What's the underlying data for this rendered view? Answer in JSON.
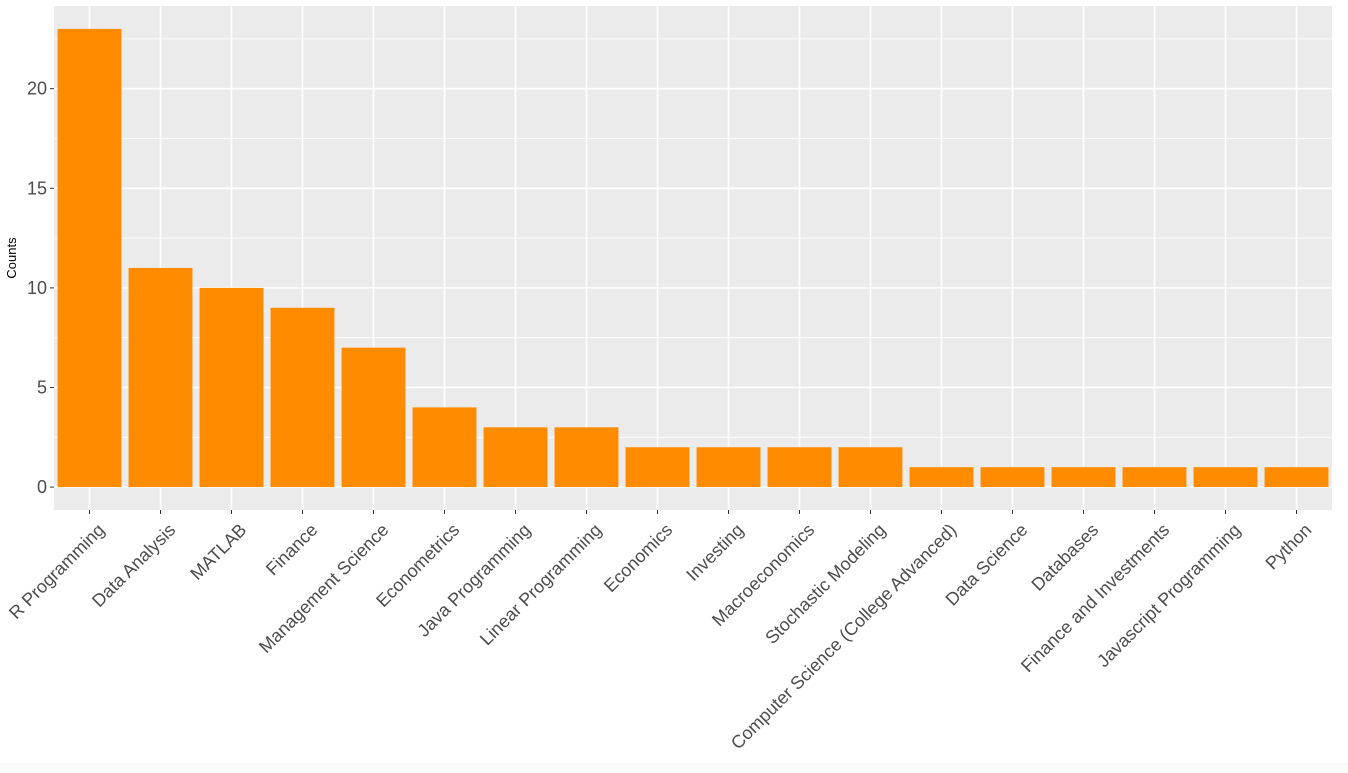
{
  "chart_data": {
    "type": "bar",
    "title": "",
    "xlabel": "",
    "ylabel": "Counts",
    "categories": [
      "R Programming",
      "Data Analysis",
      "MATLAB",
      "Finance",
      "Management Science",
      "Econometrics",
      "Java Programming",
      "Linear Programming",
      "Economics",
      "Investing",
      "Macroeconomics",
      "Stochastic Modeling",
      "Computer Science (College Advanced)",
      "Data Science",
      "Databases",
      "Finance and Investments",
      "Javascript Programming",
      "Python"
    ],
    "values": [
      23,
      11,
      10,
      9,
      7,
      4,
      3,
      3,
      2,
      2,
      2,
      2,
      1,
      1,
      1,
      1,
      1,
      1
    ],
    "yticks": [
      0,
      5,
      10,
      15,
      20
    ],
    "ylim": [
      -1.15,
      24.15
    ],
    "grid": true,
    "legend": "none",
    "bar_color": "#FF8C00",
    "panel_background": "#EBEBEB",
    "grid_color": "#FFFFFF",
    "axis_text_color": "#4D4D4D",
    "label_rotation": -45
  }
}
